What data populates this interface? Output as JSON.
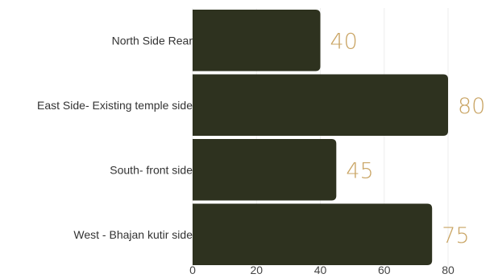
{
  "chart_data": {
    "type": "bar",
    "orientation": "horizontal",
    "categories": [
      "North Side Rear",
      "East Side- Existing temple side",
      "South- front side",
      "West - Bhajan kutir side"
    ],
    "values": [
      40,
      80,
      45,
      75
    ],
    "xlim": [
      0,
      80
    ],
    "xticks": [
      0,
      20,
      40,
      60,
      80
    ],
    "grid": true,
    "data_labels": true,
    "colors": {
      "bar": "#2e321f",
      "value_label": "#c9a463",
      "grid": "#eeeeee"
    }
  }
}
